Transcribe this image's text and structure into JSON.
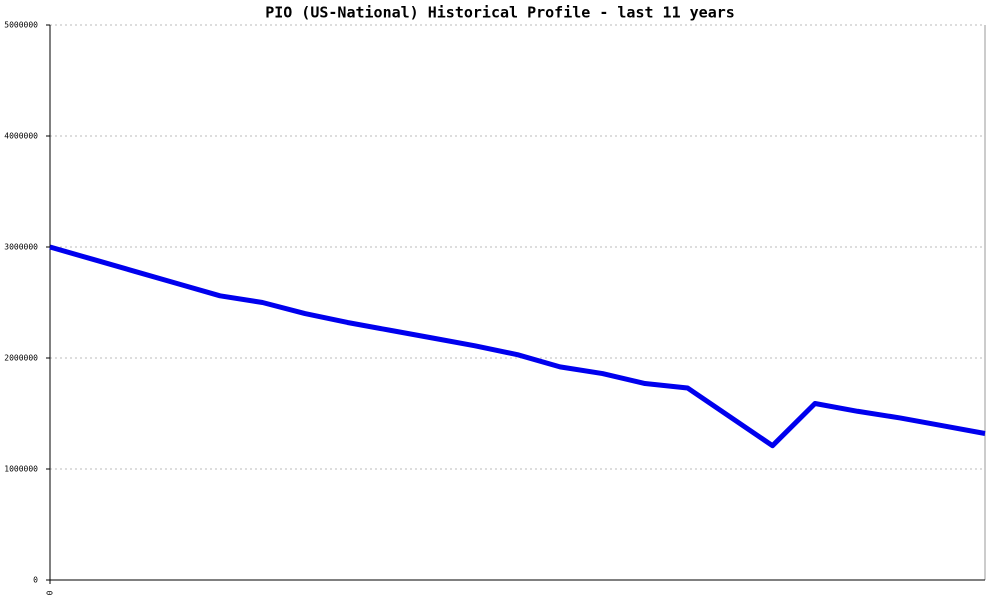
{
  "chart_data": {
    "type": "line",
    "title": "PIO (US-National) Historical Profile - last 11 years",
    "x": [
      0,
      1,
      2,
      3,
      4,
      5,
      6,
      7,
      8,
      9,
      10,
      11,
      12,
      13,
      14,
      15,
      16,
      17,
      18,
      19,
      20,
      21,
      22
    ],
    "series": [
      {
        "color": "#0000ee",
        "values": [
          3000000,
          2890000,
          2780000,
          2670000,
          2560000,
          2500000,
          2400000,
          2320000,
          2250000,
          2180000,
          2110000,
          2030000,
          1920000,
          1860000,
          1770000,
          1730000,
          1470000,
          1210000,
          1590000,
          1520000,
          1460000,
          1390000,
          1320000
        ]
      }
    ],
    "xlim": [
      0,
      22
    ],
    "xticks": [
      0
    ],
    "ylim": [
      0,
      5000000
    ],
    "yticks": [
      0,
      1000000,
      2000000,
      3000000,
      4000000,
      5000000
    ],
    "grid": true
  }
}
